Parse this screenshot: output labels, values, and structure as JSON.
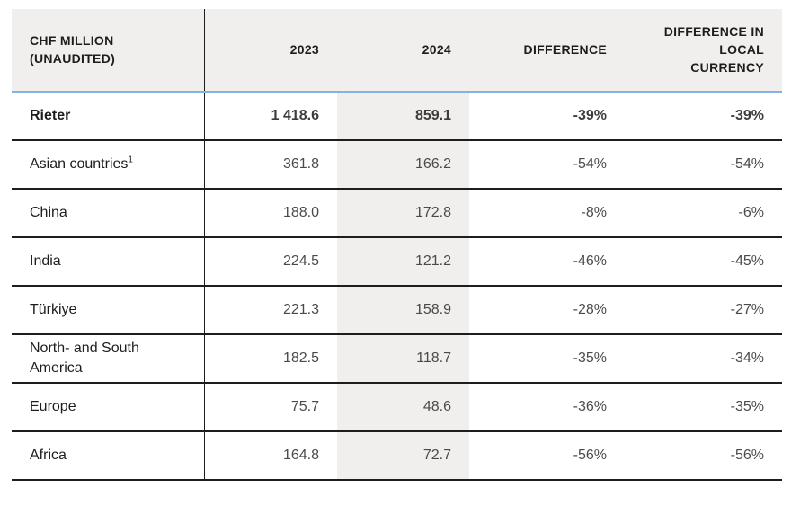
{
  "table": {
    "header": {
      "unit": "CHF MILLION\n(UNAUDITED)",
      "year_2023": "2023",
      "year_2024": "2024",
      "difference": "DIFFERENCE",
      "difference_local": "DIFFERENCE IN\nLOCAL\nCURRENCY"
    },
    "rows": [
      {
        "label": "Rieter",
        "sup": "",
        "y2023": "1 418.6",
        "y2024": "859.1",
        "difference": "-39%",
        "difference_local": "-39%"
      },
      {
        "label": "Asian countries",
        "sup": "1",
        "y2023": "361.8",
        "y2024": "166.2",
        "difference": "-54%",
        "difference_local": "-54%"
      },
      {
        "label": "China",
        "sup": "",
        "y2023": "188.0",
        "y2024": "172.8",
        "difference": "-8%",
        "difference_local": "-6%"
      },
      {
        "label": "India",
        "sup": "",
        "y2023": "224.5",
        "y2024": "121.2",
        "difference": "-46%",
        "difference_local": "-45%"
      },
      {
        "label": "Türkiye",
        "sup": "",
        "y2023": "221.3",
        "y2024": "158.9",
        "difference": "-28%",
        "difference_local": "-27%"
      },
      {
        "label": "North- and South\nAmerica",
        "sup": "",
        "y2023": "182.5",
        "y2024": "118.7",
        "difference": "-35%",
        "difference_local": "-34%"
      },
      {
        "label": "Europe",
        "sup": "",
        "y2023": "75.7",
        "y2024": "48.6",
        "difference": "-36%",
        "difference_local": "-35%"
      },
      {
        "label": "Africa",
        "sup": "",
        "y2023": "164.8",
        "y2024": "72.7",
        "difference": "-56%",
        "difference_local": "-56%"
      }
    ],
    "colors": {
      "header_background": "#F0EFED",
      "shaded_column_background": "#F0EFED",
      "accent_rule": "#82B3E3",
      "divider": "#1D1D1B",
      "label_text": "#1D1D1B",
      "number_text": "#4A4A49"
    }
  }
}
